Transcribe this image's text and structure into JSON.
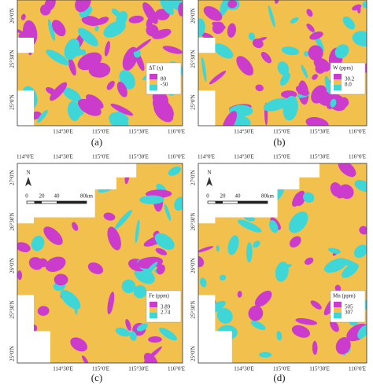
{
  "panels": [
    {
      "label": "(a)",
      "legend": {
        "title": "ΔT (γ)",
        "high": "80",
        "low": "-50"
      },
      "lat_labels": [
        "26°0'N",
        "25°30'N",
        "25°0'N"
      ],
      "lon_labels": [
        "114°30'E",
        "115°0'E",
        "115°30'E",
        "116°0'E"
      ]
    },
    {
      "label": "(b)",
      "legend": {
        "title": "W (ppm)",
        "high": "30.2",
        "low": "8.0"
      },
      "lat_labels": [
        "26°0'N",
        "25°30'N",
        "25°0'N"
      ],
      "lon_labels": [
        "114°30'E",
        "115°0'E",
        "115°30'E",
        "116°0'E"
      ]
    },
    {
      "label": "(c)",
      "legend": {
        "title": "Fe (ppm)",
        "high": "3.89",
        "low": "2.74"
      },
      "top_lon_labels": [
        "114°0'E",
        "114°30'E",
        "115°0'E",
        "115°30'E",
        "116°0'E"
      ],
      "lat_labels": [
        "27°0'N",
        "26°30'N",
        "26°0'N",
        "25°30'N",
        "25°0'N"
      ],
      "lon_labels": [
        "114°30'E",
        "115°0'E",
        "115°30'E",
        "116°0'E"
      ],
      "north": "N",
      "scale": [
        "0",
        "20",
        "40",
        "80km"
      ]
    },
    {
      "label": "(d)",
      "legend": {
        "title": "Mn (ppm)",
        "high": "505",
        "low": "307"
      },
      "top_lon_labels": [
        "114°0'E",
        "114°30'E",
        "115°0'E",
        "115°30'E",
        "116°0'E"
      ],
      "lat_labels": [
        "27°0'N",
        "26°30'N",
        "26°0'N",
        "25°30'N",
        "25°0'N"
      ],
      "lon_labels": [
        "114°30'E",
        "115°0'E",
        "115°30'E",
        "116°0'E"
      ],
      "north": "N",
      "scale": [
        "0",
        "20",
        "40",
        "80km"
      ]
    }
  ]
}
